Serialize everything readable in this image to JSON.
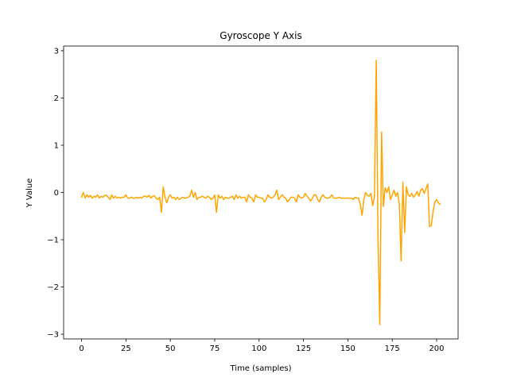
{
  "chart_data": {
    "type": "line",
    "title": "Gyroscope Y Axis",
    "xlabel": "Time (samples)",
    "ylabel": "Y Value",
    "xlim": [
      -10.1,
      212.1
    ],
    "ylim": [
      -3.1,
      3.1
    ],
    "xticks": [
      0,
      25,
      50,
      75,
      100,
      125,
      150,
      175,
      200
    ],
    "yticks": [
      -3,
      -2,
      -1,
      0,
      1,
      2,
      3
    ],
    "yticklabels": [
      "−3",
      "−2",
      "−1",
      "0",
      "1",
      "2",
      "3"
    ],
    "grid": false,
    "series": [
      {
        "color": "#ffa500",
        "x": [
          0,
          1,
          2,
          3,
          4,
          5,
          6,
          7,
          8,
          9,
          10,
          11,
          12,
          13,
          14,
          15,
          16,
          17,
          18,
          19,
          20,
          21,
          22,
          23,
          24,
          25,
          26,
          27,
          28,
          29,
          30,
          31,
          32,
          33,
          34,
          35,
          36,
          37,
          38,
          39,
          40,
          41,
          42,
          43,
          44,
          45,
          46,
          47,
          48,
          49,
          50,
          51,
          52,
          53,
          54,
          55,
          56,
          57,
          58,
          59,
          60,
          61,
          62,
          63,
          64,
          65,
          66,
          67,
          68,
          69,
          70,
          71,
          72,
          73,
          74,
          75,
          76,
          77,
          78,
          79,
          80,
          81,
          82,
          83,
          84,
          85,
          86,
          87,
          88,
          89,
          90,
          91,
          92,
          93,
          94,
          95,
          96,
          97,
          98,
          99,
          100,
          101,
          102,
          103,
          104,
          105,
          106,
          107,
          108,
          109,
          110,
          111,
          112,
          113,
          114,
          115,
          116,
          117,
          118,
          119,
          120,
          121,
          122,
          123,
          124,
          125,
          126,
          127,
          128,
          129,
          130,
          131,
          132,
          133,
          134,
          135,
          136,
          137,
          138,
          139,
          140,
          141,
          142,
          143,
          144,
          145,
          146,
          147,
          148,
          149,
          150,
          151,
          152,
          153,
          154,
          155,
          156,
          157,
          158,
          159,
          160,
          161,
          162,
          163,
          164,
          165,
          166,
          167,
          168,
          169,
          170,
          171,
          172,
          173,
          174,
          175,
          176,
          177,
          178,
          179,
          180,
          181,
          182,
          183,
          184,
          185,
          186,
          187,
          188,
          189,
          190,
          191,
          192,
          193,
          194,
          195,
          196,
          197,
          198,
          199,
          200,
          201,
          202
        ],
        "y": [
          -0.1,
          0.0,
          -0.12,
          -0.05,
          -0.1,
          -0.06,
          -0.12,
          -0.08,
          -0.1,
          -0.05,
          -0.12,
          -0.08,
          -0.1,
          -0.06,
          -0.06,
          -0.1,
          -0.15,
          -0.05,
          -0.12,
          -0.08,
          -0.12,
          -0.1,
          -0.12,
          -0.1,
          -0.1,
          -0.05,
          -0.12,
          -0.12,
          -0.1,
          -0.12,
          -0.12,
          -0.1,
          -0.12,
          -0.1,
          -0.12,
          -0.08,
          -0.08,
          -0.1,
          -0.06,
          -0.12,
          -0.08,
          -0.07,
          -0.12,
          -0.15,
          -0.1,
          -0.42,
          0.12,
          -0.1,
          -0.22,
          -0.1,
          -0.05,
          -0.12,
          -0.1,
          -0.15,
          -0.1,
          -0.15,
          -0.12,
          -0.1,
          -0.12,
          -0.12,
          -0.1,
          -0.08,
          0.05,
          -0.1,
          0.0,
          -0.15,
          -0.1,
          -0.1,
          -0.08,
          -0.1,
          -0.12,
          -0.08,
          -0.1,
          -0.15,
          -0.12,
          -0.05,
          -0.42,
          -0.05,
          -0.12,
          -0.08,
          -0.15,
          -0.1,
          -0.12,
          -0.12,
          -0.1,
          -0.08,
          -0.15,
          -0.05,
          -0.12,
          -0.08,
          -0.12,
          -0.1,
          -0.1,
          -0.2,
          -0.05,
          -0.1,
          -0.12,
          -0.2,
          -0.05,
          -0.1,
          -0.1,
          -0.12,
          -0.12,
          -0.2,
          -0.15,
          -0.05,
          -0.1,
          -0.12,
          -0.1,
          -0.05,
          0.05,
          -0.15,
          -0.1,
          -0.05,
          -0.1,
          -0.12,
          -0.2,
          -0.15,
          -0.1,
          -0.1,
          -0.12,
          -0.2,
          -0.05,
          -0.1,
          -0.12,
          -0.1,
          -0.02,
          -0.08,
          -0.12,
          -0.18,
          -0.12,
          -0.05,
          -0.05,
          -0.15,
          -0.2,
          -0.1,
          -0.05,
          -0.1,
          -0.12,
          -0.12,
          -0.1,
          -0.05,
          -0.12,
          -0.12,
          -0.12,
          -0.1,
          -0.12,
          -0.12,
          -0.12,
          -0.12,
          -0.12,
          -0.12,
          -0.12,
          -0.15,
          -0.1,
          -0.12,
          -0.12,
          -0.25,
          -0.48,
          -0.15,
          0.0,
          -0.06,
          -0.08,
          -0.02,
          -0.28,
          -0.08,
          2.8,
          -1.0,
          -2.8,
          1.28,
          -0.3,
          0.1,
          0.0,
          0.12,
          -0.15,
          -0.05,
          0.05,
          -0.08,
          0.0,
          -0.25,
          -1.45,
          0.22,
          -0.85,
          0.12,
          -0.05,
          -0.08,
          -0.02,
          -0.1,
          -0.05,
          0.02,
          -0.08,
          0.05,
          0.08,
          -0.02,
          0.08,
          0.18,
          -0.72,
          -0.7,
          -0.4,
          -0.2,
          -0.15,
          -0.22,
          -0.25
        ]
      }
    ]
  }
}
